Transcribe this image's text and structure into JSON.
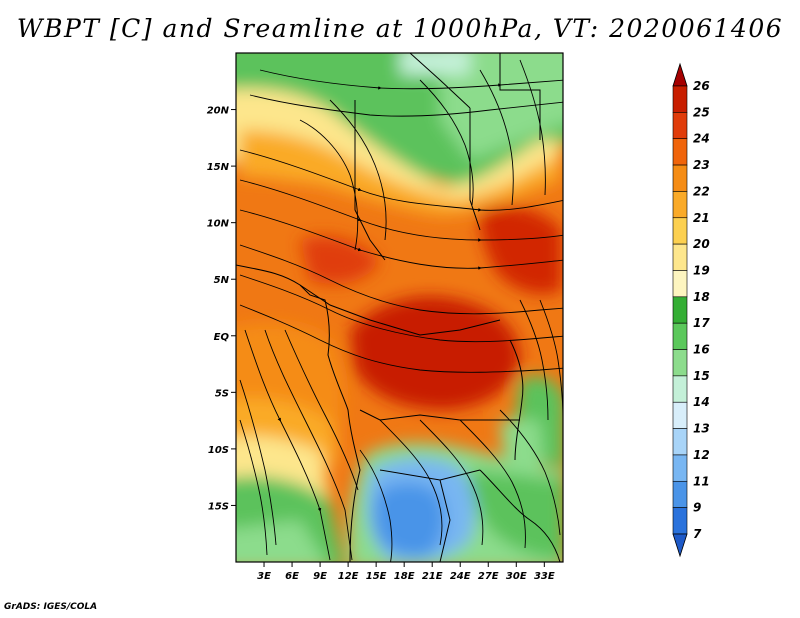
{
  "title": "WBPT [C] and Sreamline at 1000hPa, VT: 2020061406",
  "credit": "GrADS: IGES/COLA",
  "map": {
    "lon_range": [
      0,
      35
    ],
    "lat_range": [
      -20,
      25
    ],
    "lat_ticks": [
      "20N",
      "15N",
      "10N",
      "5N",
      "EQ",
      "5S",
      "10S",
      "15S"
    ],
    "lat_tick_values": [
      20,
      15,
      10,
      5,
      0,
      -5,
      -10,
      -15
    ],
    "lon_ticks": [
      "3E",
      "6E",
      "9E",
      "12E",
      "15E",
      "18E",
      "21E",
      "24E",
      "27E",
      "30E",
      "33E"
    ],
    "lon_tick_values": [
      3,
      6,
      9,
      12,
      15,
      18,
      21,
      24,
      27,
      30,
      33
    ]
  },
  "colorbar": {
    "labels": [
      "26",
      "25",
      "24",
      "23",
      "22",
      "21",
      "20",
      "19",
      "18",
      "17",
      "16",
      "15",
      "14",
      "13",
      "12",
      "11",
      "9",
      "7"
    ],
    "colors": [
      "#a50000",
      "#c81e00",
      "#e03c0a",
      "#f0640a",
      "#f58c14",
      "#faaa28",
      "#fcd050",
      "#fde68c",
      "#fdf5c0",
      "#34ae34",
      "#5bc85b",
      "#8cdc8c",
      "#c4f0d8",
      "#d8eefa",
      "#a8d4f8",
      "#78b6f2",
      "#4a94e8",
      "#2a72dc",
      "#1e5ac8"
    ]
  }
}
